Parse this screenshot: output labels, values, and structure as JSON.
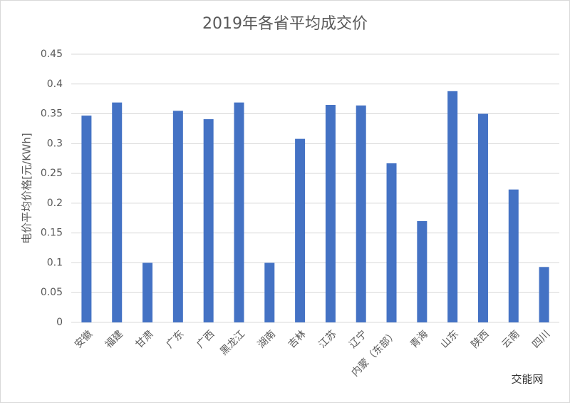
{
  "chart_data": {
    "type": "bar",
    "title": "2019年各省平均成交价",
    "y_label": "电价平均价格[元/KWh]",
    "categories": [
      "安徽",
      "福建",
      "甘肃",
      "广东",
      "广西",
      "黑龙江",
      "湖南",
      "吉林",
      "江苏",
      "辽宁",
      "内蒙（东部）",
      "青海",
      "山东",
      "陕西",
      "云南",
      "四川"
    ],
    "values": [
      0.347,
      0.369,
      0.1,
      0.355,
      0.341,
      0.369,
      0.1,
      0.308,
      0.365,
      0.364,
      0.267,
      0.17,
      0.388,
      0.35,
      0.223,
      0.093
    ],
    "color": "#4472c4",
    "ylim": [
      0,
      0.45
    ],
    "yticks": [
      0,
      0.05,
      0.1,
      0.15,
      0.2,
      0.25,
      0.3,
      0.35,
      0.4,
      0.45
    ],
    "grid": true,
    "watermark": "交能网"
  }
}
